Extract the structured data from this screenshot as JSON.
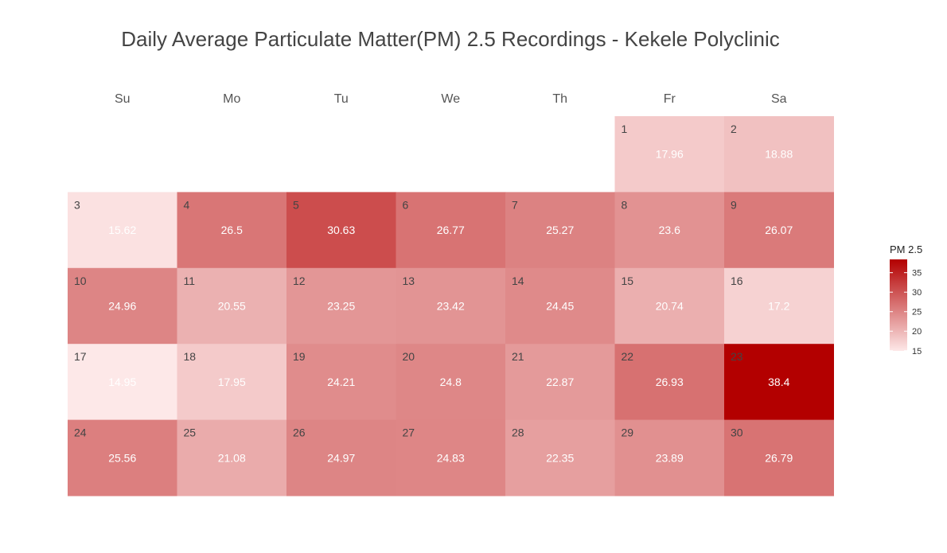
{
  "chart_data": {
    "type": "heatmap",
    "title": "Daily Average Particulate Matter(PM) 2.5 Recordings - Kekele Polyclinic",
    "weekdays": [
      "Su",
      "Mo",
      "Tu",
      "We",
      "Th",
      "Fr",
      "Sa"
    ],
    "first_weekday_index": 5,
    "days": [
      {
        "day": "1",
        "value": 17.96,
        "label": "17.96"
      },
      {
        "day": "2",
        "value": 18.88,
        "label": "18.88"
      },
      {
        "day": "3",
        "value": 15.62,
        "label": "15.62"
      },
      {
        "day": "4",
        "value": 26.5,
        "label": "26.5"
      },
      {
        "day": "5",
        "value": 30.63,
        "label": "30.63"
      },
      {
        "day": "6",
        "value": 26.77,
        "label": "26.77"
      },
      {
        "day": "7",
        "value": 25.27,
        "label": "25.27"
      },
      {
        "day": "8",
        "value": 23.6,
        "label": "23.6"
      },
      {
        "day": "9",
        "value": 26.07,
        "label": "26.07"
      },
      {
        "day": "10",
        "value": 24.96,
        "label": "24.96"
      },
      {
        "day": "11",
        "value": 20.55,
        "label": "20.55"
      },
      {
        "day": "12",
        "value": 23.25,
        "label": "23.25"
      },
      {
        "day": "13",
        "value": 23.42,
        "label": "23.42"
      },
      {
        "day": "14",
        "value": 24.45,
        "label": "24.45"
      },
      {
        "day": "15",
        "value": 20.74,
        "label": "20.74"
      },
      {
        "day": "16",
        "value": 17.2,
        "label": "17.2"
      },
      {
        "day": "17",
        "value": 14.95,
        "label": "14.95"
      },
      {
        "day": "18",
        "value": 17.95,
        "label": "17.95"
      },
      {
        "day": "19",
        "value": 24.21,
        "label": "24.21"
      },
      {
        "day": "20",
        "value": 24.8,
        "label": "24.8"
      },
      {
        "day": "21",
        "value": 22.87,
        "label": "22.87"
      },
      {
        "day": "22",
        "value": 26.93,
        "label": "26.93"
      },
      {
        "day": "23",
        "value": 38.4,
        "label": "38.4"
      },
      {
        "day": "24",
        "value": 25.56,
        "label": "25.56"
      },
      {
        "day": "25",
        "value": 21.08,
        "label": "21.08"
      },
      {
        "day": "26",
        "value": 24.97,
        "label": "24.97"
      },
      {
        "day": "27",
        "value": 24.83,
        "label": "24.83"
      },
      {
        "day": "28",
        "value": 22.35,
        "label": "22.35"
      },
      {
        "day": "29",
        "value": 23.89,
        "label": "23.89"
      },
      {
        "day": "30",
        "value": 26.79,
        "label": "26.79"
      }
    ],
    "legend": {
      "title": "PM 2.5",
      "ticks": [
        "15",
        "20",
        "25",
        "30",
        "35"
      ],
      "placement": "right"
    },
    "color_scale": {
      "low_value": 14.95,
      "high_value": 38.4,
      "low_color": "#fde8e8",
      "high_color": "#b30000"
    }
  }
}
